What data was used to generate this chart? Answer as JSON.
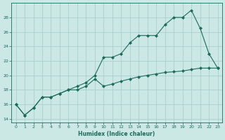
{
  "title": "",
  "xlabel": "Humidex (Indice chaleur)",
  "bg_color": "#cce8e4",
  "line_color": "#1a6b5a",
  "grid_color": "#aacfca",
  "x_line1": [
    0,
    1,
    2,
    3,
    4,
    5,
    6,
    7,
    8,
    9,
    10,
    11,
    12,
    13,
    14,
    15,
    16,
    17,
    18,
    19,
    20,
    21,
    22,
    23
  ],
  "y_line1": [
    16,
    14.5,
    15.5,
    17,
    17,
    17.5,
    18,
    18.5,
    19,
    20,
    22.5,
    22.5,
    23,
    24.5,
    25.5,
    25.5,
    25.5,
    27,
    28,
    28,
    29,
    26.5,
    23,
    21
  ],
  "x_line2": [
    0,
    1,
    2,
    3,
    4,
    5,
    6,
    7,
    8,
    9,
    10,
    11,
    12,
    13,
    14,
    15,
    16,
    17,
    18,
    19,
    20,
    21,
    22,
    23
  ],
  "y_line2": [
    16,
    14.5,
    15.5,
    17,
    17,
    17.5,
    18,
    18,
    18.5,
    19.5,
    18.5,
    18.8,
    19.2,
    19.5,
    19.8,
    20.0,
    20.2,
    20.4,
    20.5,
    20.6,
    20.8,
    21.0,
    21.0,
    21.0
  ],
  "ylim": [
    13.5,
    30
  ],
  "xlim": [
    -0.5,
    23.5
  ],
  "yticks": [
    14,
    16,
    18,
    20,
    22,
    24,
    26,
    28
  ],
  "xticks": [
    0,
    1,
    2,
    3,
    4,
    5,
    6,
    7,
    8,
    9,
    10,
    11,
    12,
    13,
    14,
    15,
    16,
    17,
    18,
    19,
    20,
    21,
    22,
    23
  ],
  "marker": "D",
  "markersize": 2.2
}
